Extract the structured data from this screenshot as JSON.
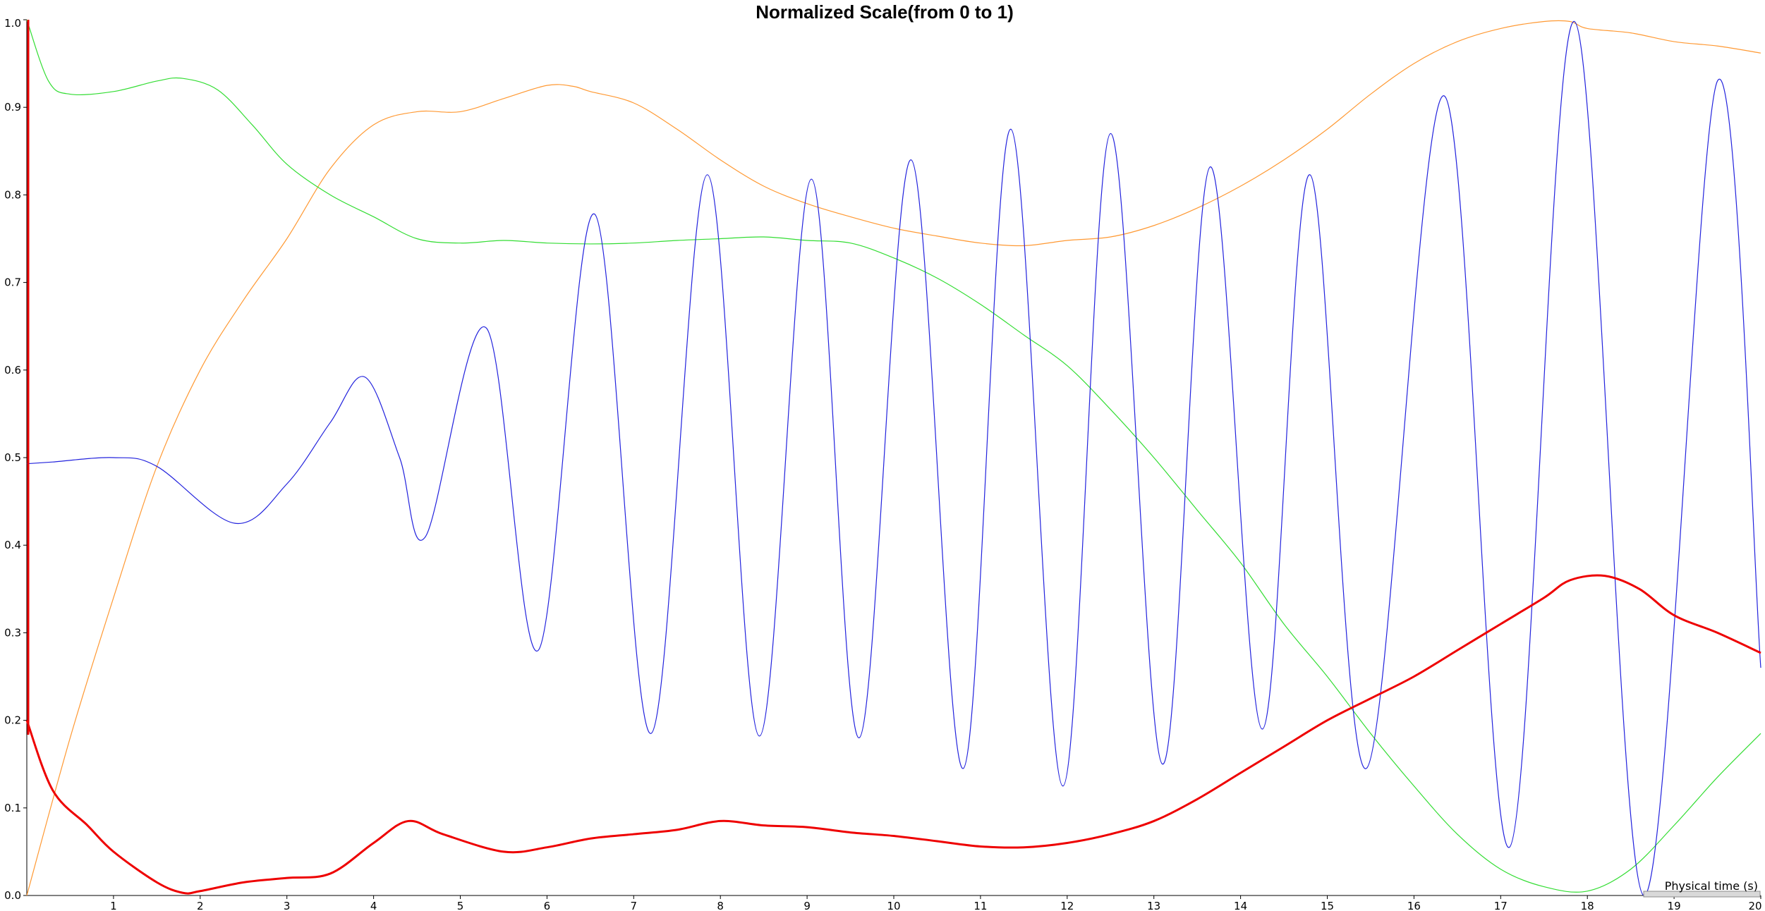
{
  "chart_data": {
    "type": "line",
    "title": "Normalized Scale(from 0 to 1)",
    "xlabel": "Physical time (s)",
    "ylabel": "",
    "xlim": [
      0,
      20
    ],
    "ylim": [
      0,
      1
    ],
    "x_ticks": [
      "1",
      "2",
      "3",
      "4",
      "5",
      "6",
      "7",
      "8",
      "9",
      "10",
      "11",
      "12",
      "13",
      "14",
      "15",
      "16",
      "17",
      "18",
      "19",
      "20"
    ],
    "y_ticks": [
      "0.0",
      "0.1",
      "0.2",
      "0.3",
      "0.4",
      "0.5",
      "0.6",
      "0.7",
      "0.8",
      "0.9",
      "1.0"
    ],
    "grid": false,
    "legend": "none",
    "colors": {
      "axis": "#000000",
      "scrollbar": "#bfbfbf"
    },
    "series": [
      {
        "color": "#ff9933",
        "stroke_width": 1.2,
        "x": [
          0,
          0.5,
          1,
          1.5,
          2,
          2.5,
          3,
          3.5,
          4,
          4.5,
          5,
          5.5,
          6,
          6.3,
          6.5,
          7,
          7.5,
          8,
          8.5,
          9,
          9.5,
          10,
          10.5,
          11,
          11.5,
          12,
          12.5,
          13,
          13.5,
          14,
          14.5,
          15,
          15.5,
          16,
          16.5,
          17,
          17.5,
          17.8,
          18,
          18.5,
          19,
          19.5,
          20
        ],
        "y": [
          0.0,
          0.18,
          0.34,
          0.49,
          0.6,
          0.68,
          0.75,
          0.83,
          0.88,
          0.895,
          0.895,
          0.91,
          0.925,
          0.924,
          0.918,
          0.905,
          0.875,
          0.84,
          0.81,
          0.79,
          0.775,
          0.762,
          0.753,
          0.745,
          0.742,
          0.748,
          0.752,
          0.765,
          0.785,
          0.81,
          0.84,
          0.875,
          0.915,
          0.95,
          0.975,
          0.99,
          0.998,
          0.998,
          0.99,
          0.985,
          0.975,
          0.97,
          0.962
        ]
      },
      {
        "color": "#33dd33",
        "stroke_width": 1.2,
        "x": [
          0,
          0.25,
          0.5,
          1,
          1.5,
          1.8,
          2.2,
          2.6,
          3,
          3.5,
          4,
          4.5,
          5,
          5.5,
          6,
          6.5,
          7,
          7.5,
          8,
          8.5,
          9,
          9.5,
          10,
          10.5,
          11,
          11.5,
          12,
          12.5,
          13,
          13.5,
          14,
          14.5,
          15,
          15.5,
          16,
          16.5,
          17,
          17.5,
          18,
          18.5,
          19,
          19.5,
          20
        ],
        "y": [
          1.0,
          0.93,
          0.915,
          0.918,
          0.93,
          0.933,
          0.92,
          0.88,
          0.835,
          0.8,
          0.775,
          0.75,
          0.745,
          0.748,
          0.745,
          0.744,
          0.745,
          0.748,
          0.75,
          0.752,
          0.748,
          0.745,
          0.728,
          0.705,
          0.675,
          0.64,
          0.605,
          0.555,
          0.5,
          0.44,
          0.38,
          0.31,
          0.25,
          0.185,
          0.125,
          0.07,
          0.03,
          0.01,
          0.005,
          0.03,
          0.08,
          0.135,
          0.185
        ]
      },
      {
        "color": "#2222dd",
        "stroke_width": 1.2,
        "x": [
          0,
          0.3,
          1,
          1.5,
          2.4,
          3,
          3.5,
          3.9,
          4.3,
          4.6,
          5.3,
          5.9,
          6.55,
          7.2,
          7.85,
          8.45,
          9.05,
          9.6,
          10.2,
          10.8,
          11.35,
          11.95,
          12.5,
          13.1,
          13.65,
          14.25,
          14.8,
          15.45,
          16.35,
          17.1,
          17.85,
          18.65,
          19.5,
          20
        ],
        "y": [
          0.493,
          0.495,
          0.5,
          0.49,
          0.425,
          0.47,
          0.54,
          0.592,
          0.5,
          0.41,
          0.648,
          0.28,
          0.778,
          0.185,
          0.823,
          0.182,
          0.818,
          0.18,
          0.84,
          0.145,
          0.875,
          0.125,
          0.87,
          0.15,
          0.832,
          0.19,
          0.823,
          0.145,
          0.913,
          0.055,
          0.998,
          0.0,
          0.93,
          0.26
        ]
      },
      {
        "color": "#ee0000",
        "stroke_width": 3,
        "x": [
          0,
          0.3,
          0.7,
          1,
          1.5,
          1.8,
          2,
          2.5,
          3,
          3.5,
          4,
          4.4,
          4.8,
          5.5,
          6,
          6.5,
          7,
          7.5,
          8,
          8.5,
          9,
          9.5,
          10,
          10.5,
          11,
          11.5,
          12,
          12.5,
          13,
          13.5,
          14,
          14.5,
          15,
          15.5,
          16,
          16.5,
          17,
          17.5,
          17.8,
          18.2,
          18.6,
          19,
          19.5,
          20
        ],
        "y": [
          0.2,
          0.12,
          0.08,
          0.05,
          0.015,
          0.003,
          0.005,
          0.015,
          0.02,
          0.025,
          0.06,
          0.085,
          0.07,
          0.05,
          0.055,
          0.065,
          0.07,
          0.075,
          0.085,
          0.08,
          0.078,
          0.072,
          0.068,
          0.062,
          0.056,
          0.055,
          0.06,
          0.07,
          0.085,
          0.11,
          0.14,
          0.17,
          0.2,
          0.225,
          0.25,
          0.28,
          0.31,
          0.34,
          0.36,
          0.365,
          0.35,
          0.32,
          0.3,
          0.277
        ]
      }
    ]
  }
}
